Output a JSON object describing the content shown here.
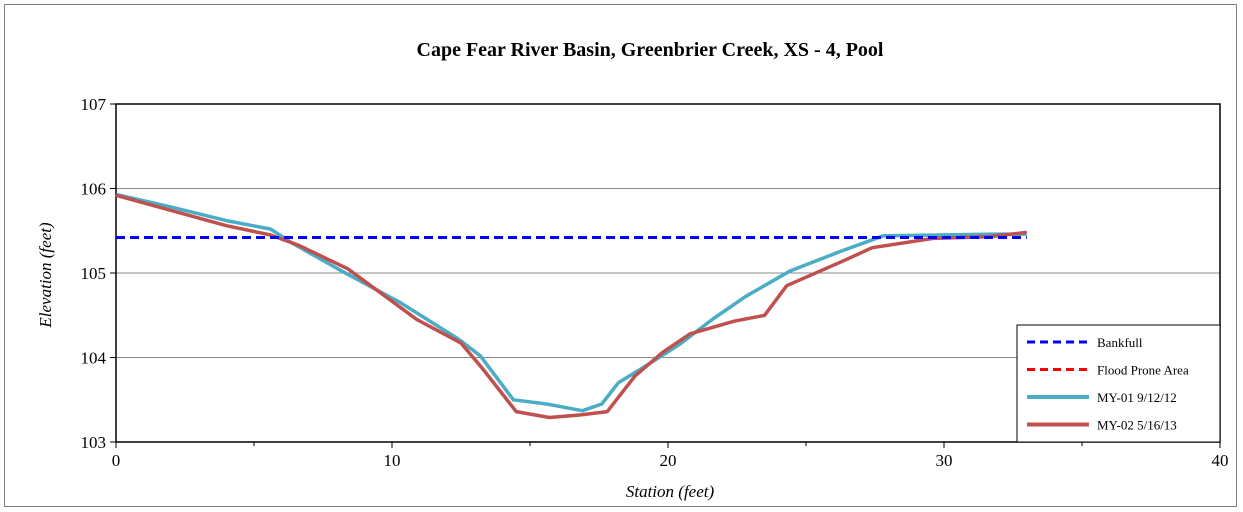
{
  "chart_data": {
    "type": "line",
    "title": "Cape Fear River Basin, Greenbrier Creek, XS - 4, Pool",
    "xlabel": "Station (feet)",
    "ylabel": "Elevation (feet)",
    "xlim": [
      0,
      40
    ],
    "ylim": [
      103,
      107
    ],
    "xticks": [
      "0",
      "10",
      "20",
      "30",
      "40"
    ],
    "yticks": [
      "103",
      "104",
      "105",
      "106",
      "107"
    ],
    "grid": "horizontal",
    "legend_position": "bottom-right",
    "series": [
      {
        "name": "Bankfull",
        "color": "#0000ff",
        "style": "dashed",
        "x": [
          0,
          33
        ],
        "y": [
          105.42,
          105.42
        ]
      },
      {
        "name": "Flood Prone Area",
        "color": "#ff0000",
        "style": "dashed",
        "x": [],
        "y": []
      },
      {
        "name": "MY-01 9/12/12",
        "color": "#4bacc6",
        "style": "solid",
        "x": [
          0,
          2,
          4,
          5.6,
          6.4,
          8.2,
          10.3,
          12.4,
          13.2,
          14.4,
          15.6,
          16.9,
          17.6,
          18.2,
          19.2,
          20.4,
          21.6,
          22.8,
          24.4,
          26.2,
          27.8,
          29.8,
          31.8,
          33
        ],
        "y": [
          105.93,
          105.78,
          105.62,
          105.52,
          105.35,
          105.02,
          104.65,
          104.22,
          104.02,
          103.5,
          103.45,
          103.37,
          103.45,
          103.7,
          103.9,
          104.15,
          104.45,
          104.72,
          105.02,
          105.25,
          105.44,
          105.45,
          105.46,
          105.46
        ]
      },
      {
        "name": "MY-02 5/16/13",
        "color": "#c0504d",
        "style": "solid",
        "x": [
          0,
          2,
          4,
          5.6,
          6.6,
          8.4,
          10.9,
          12.5,
          13.3,
          14.5,
          15.7,
          16.8,
          17.8,
          18.8,
          19.8,
          20.8,
          22.4,
          23.5,
          24.3,
          26.4,
          27.4,
          29.6,
          31.6,
          33
        ],
        "y": [
          105.92,
          105.74,
          105.56,
          105.45,
          105.33,
          105.05,
          104.45,
          104.17,
          103.86,
          103.36,
          103.29,
          103.32,
          103.36,
          103.78,
          104.06,
          104.28,
          104.43,
          104.5,
          104.85,
          105.15,
          105.3,
          105.41,
          105.43,
          105.48
        ]
      }
    ]
  }
}
